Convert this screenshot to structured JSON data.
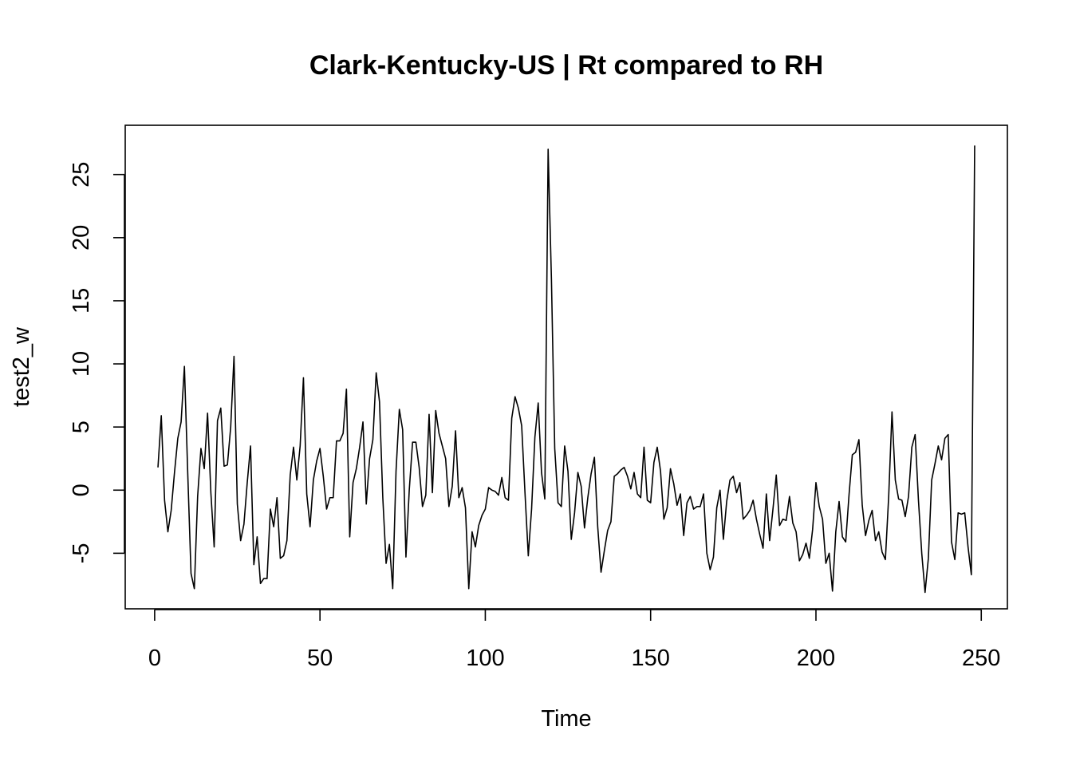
{
  "chart_data": {
    "type": "line",
    "title": "Clark-Kentucky-US | Rt compared to RH",
    "xlabel": "Time",
    "ylabel": "test2_w",
    "xlim": [
      -8.9,
      257.9
    ],
    "ylim": [
      -9.4,
      28.9
    ],
    "xticks": [
      0,
      50,
      100,
      150,
      200,
      250
    ],
    "yticks": [
      -5,
      0,
      5,
      10,
      15,
      20,
      25
    ],
    "grid": false,
    "series": [
      {
        "x": [
          1,
          2,
          3,
          4,
          5,
          6,
          7,
          8,
          9,
          10,
          11,
          12,
          13,
          14,
          15,
          16,
          17,
          18,
          19,
          20,
          21,
          22,
          23,
          24,
          25,
          26,
          27,
          28,
          29,
          30,
          31,
          32,
          33,
          34,
          35,
          36,
          37,
          38,
          39,
          40,
          41,
          42,
          43,
          44,
          45,
          46,
          47,
          48,
          49,
          50,
          51,
          52,
          53,
          54,
          55,
          56,
          57,
          58,
          59,
          60,
          61,
          62,
          63,
          64,
          65,
          66,
          67,
          68,
          69,
          70,
          71,
          72,
          73,
          74,
          75,
          76,
          77,
          78,
          79,
          80,
          81,
          82,
          83,
          84,
          85,
          86,
          87,
          88,
          89,
          90,
          91,
          92,
          93,
          94,
          95,
          96,
          97,
          98,
          99,
          100,
          101,
          102,
          103,
          104,
          105,
          106,
          107,
          108,
          109,
          110,
          111,
          112,
          113,
          114,
          115,
          116,
          117,
          118,
          119,
          120,
          121,
          122,
          123,
          124,
          125,
          126,
          127,
          128,
          129,
          130,
          131,
          132,
          133,
          134,
          135,
          136,
          137,
          138,
          139,
          140,
          141,
          142,
          143,
          144,
          145,
          146,
          147,
          148,
          149,
          150,
          151,
          152,
          153,
          154,
          155,
          156,
          157,
          158,
          159,
          160,
          161,
          162,
          163,
          164,
          165,
          166,
          167,
          168,
          169,
          170,
          171,
          172,
          173,
          174,
          175,
          176,
          177,
          178,
          179,
          180,
          181,
          182,
          183,
          184,
          185,
          186,
          187,
          188,
          189,
          190,
          191,
          192,
          193,
          194,
          195,
          196,
          197,
          198,
          199,
          200,
          201,
          202,
          203,
          204,
          205,
          206,
          207,
          208,
          209,
          210,
          211,
          212,
          213,
          214,
          215,
          216,
          217,
          218,
          219,
          220,
          221,
          222,
          223,
          224,
          225,
          226,
          227,
          228,
          229,
          230,
          231,
          232,
          233,
          234,
          235,
          236,
          237,
          238,
          239,
          240,
          241,
          242,
          243,
          244,
          245,
          246,
          247,
          248
        ],
        "values": [
          1.8,
          5.9,
          -0.8,
          -3.3,
          -1.6,
          1.4,
          4.1,
          5.4,
          9.8,
          1.4,
          -6.6,
          -7.8,
          -0.5,
          3.3,
          1.7,
          6.1,
          -0.2,
          -4.5,
          5.5,
          6.5,
          1.9,
          2.0,
          5.0,
          10.6,
          -1.1,
          -4.0,
          -2.7,
          0.6,
          3.5,
          -5.9,
          -3.7,
          -7.4,
          -7.0,
          -7.0,
          -1.5,
          -2.9,
          -0.6,
          -5.4,
          -5.2,
          -4.0,
          1.2,
          3.4,
          0.8,
          3.5,
          8.9,
          -0.3,
          -2.9,
          0.8,
          2.3,
          3.3,
          1.1,
          -1.5,
          -0.6,
          -0.6,
          3.9,
          3.9,
          4.5,
          8.0,
          -3.7,
          0.6,
          1.7,
          3.4,
          5.4,
          -1.1,
          2.5,
          4.0,
          9.3,
          7.0,
          -0.6,
          -5.8,
          -4.3,
          -7.8,
          1.5,
          6.4,
          4.8,
          -5.3,
          0.0,
          3.8,
          3.8,
          1.8,
          -1.3,
          -0.4,
          6.0,
          -0.2,
          6.3,
          4.5,
          3.5,
          2.5,
          -1.3,
          0.3,
          4.7,
          -0.6,
          0.2,
          -1.4,
          -7.8,
          -3.3,
          -4.5,
          -2.8,
          -2.0,
          -1.5,
          0.2,
          0.0,
          -0.1,
          -0.4,
          1.0,
          -0.6,
          -0.8,
          5.7,
          7.4,
          6.5,
          5.1,
          -0.2,
          -5.2,
          -1.5,
          4.2,
          6.9,
          1.4,
          -0.7,
          27.0,
          16.7,
          3.3,
          -1.0,
          -1.3,
          3.5,
          1.5,
          -3.9,
          -1.8,
          1.4,
          0.3,
          -3.0,
          -0.6,
          1.3,
          2.6,
          -2.9,
          -6.5,
          -4.8,
          -3.2,
          -2.5,
          1.1,
          1.3,
          1.6,
          1.8,
          1.1,
          0.1,
          1.4,
          -0.3,
          -0.6,
          3.4,
          -0.8,
          -1.0,
          2.2,
          3.4,
          1.5,
          -2.3,
          -1.4,
          1.7,
          0.5,
          -1.2,
          -0.3,
          -3.6,
          -1.0,
          -0.5,
          -1.5,
          -1.3,
          -1.3,
          -0.3,
          -5.0,
          -6.3,
          -5.3,
          -1.4,
          0.0,
          -3.9,
          -0.9,
          0.8,
          1.1,
          -0.2,
          0.6,
          -2.3,
          -2.0,
          -1.6,
          -0.8,
          -2.3,
          -3.5,
          -4.6,
          -0.3,
          -4.0,
          -1.5,
          1.2,
          -2.8,
          -2.3,
          -2.4,
          -0.5,
          -2.6,
          -3.3,
          -5.6,
          -5.1,
          -4.2,
          -5.4,
          -3.1,
          0.6,
          -1.3,
          -2.3,
          -5.8,
          -5.0,
          -8.0,
          -3.3,
          -0.9,
          -3.7,
          -4.1,
          -0.4,
          2.8,
          3.0,
          4.0,
          -1.2,
          -3.6,
          -2.4,
          -1.6,
          -4.0,
          -3.3,
          -4.9,
          -5.5,
          -0.5,
          6.2,
          0.8,
          -0.7,
          -0.8,
          -2.1,
          -0.5,
          3.4,
          4.4,
          -0.8,
          -5.0,
          -8.1,
          -5.4,
          0.8,
          2.1,
          3.5,
          2.4,
          4.1,
          4.4,
          -4.1,
          -5.5,
          -1.8,
          -1.9,
          -1.8,
          -4.5,
          -6.7,
          27.3
        ]
      }
    ]
  }
}
